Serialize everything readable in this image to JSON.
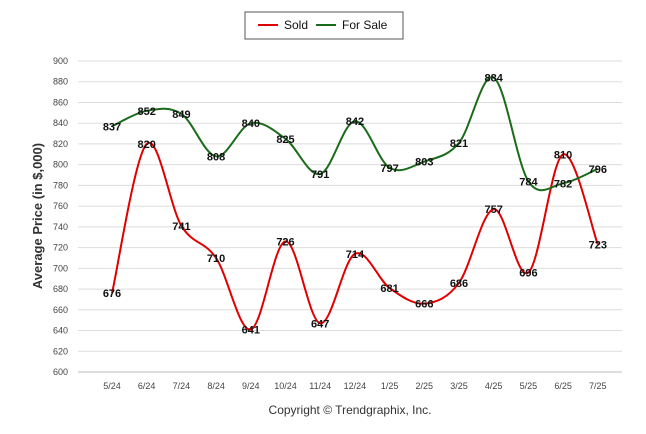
{
  "chart_data": {
    "type": "line",
    "ylabel": "Average Price (in $,000)",
    "xlabel": "",
    "ylim": [
      600,
      900
    ],
    "y_ticks": [
      600,
      620,
      640,
      660,
      680,
      700,
      720,
      740,
      760,
      780,
      800,
      820,
      840,
      860,
      880,
      900
    ],
    "categories": [
      "5/24",
      "6/24",
      "7/24",
      "8/24",
      "9/24",
      "10/24",
      "11/24",
      "12/24",
      "1/25",
      "2/25",
      "3/25",
      "4/25",
      "5/25",
      "6/25",
      "7/25"
    ],
    "series": [
      {
        "name": "Sold",
        "color": "#e00000",
        "values": [
          676,
          820,
          741,
          710,
          641,
          726,
          647,
          714,
          681,
          666,
          686,
          757,
          696,
          810,
          723
        ]
      },
      {
        "name": "For Sale",
        "color": "#1a6b1a",
        "values": [
          837,
          852,
          849,
          808,
          840,
          825,
          791,
          842,
          797,
          803,
          821,
          884,
          784,
          782,
          796
        ]
      }
    ],
    "legend_position": "top-center",
    "grid": true,
    "footer": "Copyright © Trendgraphix, Inc."
  }
}
